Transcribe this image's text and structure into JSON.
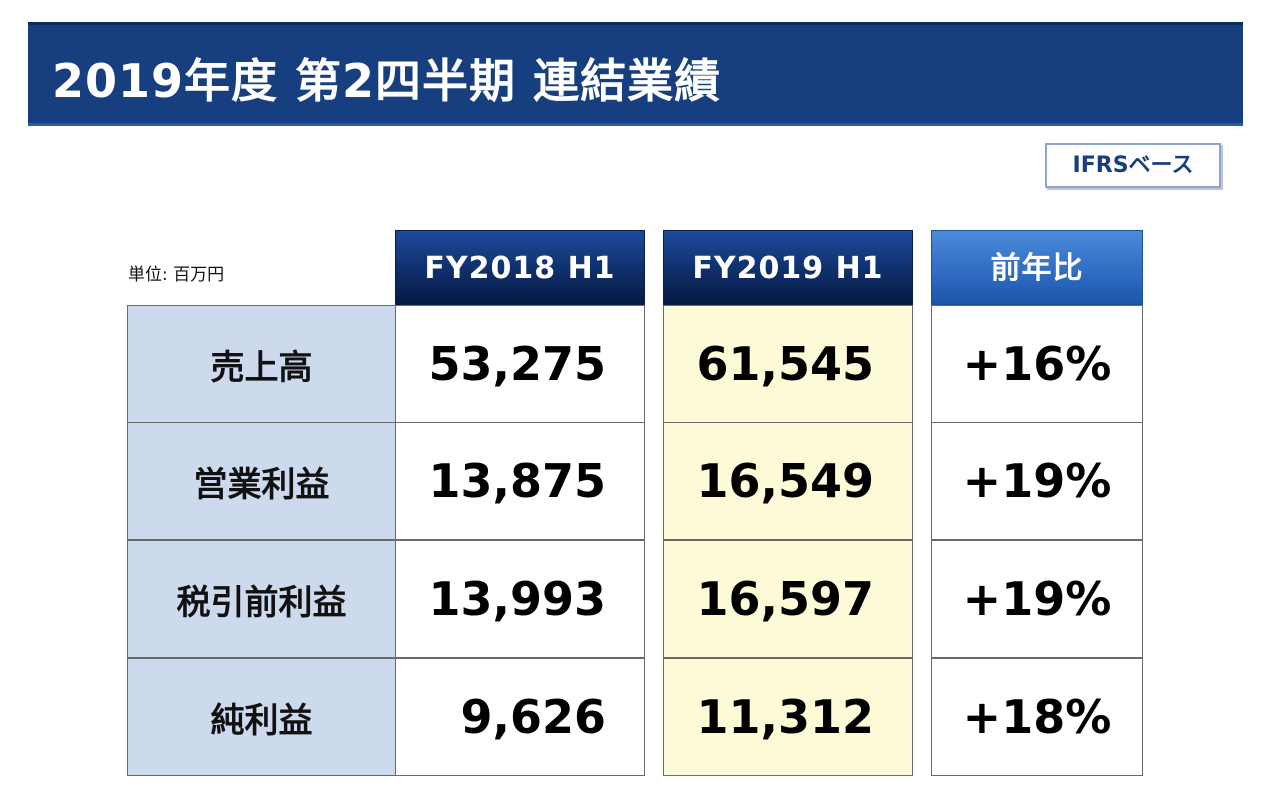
{
  "title": "2019年度 第2四半期 連結業績",
  "badge": "IFRSベース",
  "unit": "単位: 百万円",
  "headers": {
    "fy2018": "FY2018 H1",
    "fy2019": "FY2019 H1",
    "ratio": "前年比"
  },
  "rows": [
    {
      "label": "売上高",
      "fy2018": "53,275",
      "fy2019": "61,545",
      "ratio": "+16%"
    },
    {
      "label": "営業利益",
      "fy2018": "13,875",
      "fy2019": "16,549",
      "ratio": "+19%"
    },
    {
      "label": "税引前利益",
      "fy2018": "13,993",
      "fy2019": "16,597",
      "ratio": "+19%"
    },
    {
      "label": "純利益",
      "fy2018": "9,626",
      "fy2019": "11,312",
      "ratio": "+18%"
    }
  ],
  "colors": {
    "title_bar": "#173f7f",
    "header_dark": "#0e2c66",
    "header_ratio": "#2e6bc2",
    "label_bg": "#cdd9ec",
    "fy2019_bg": "#fdfad8"
  }
}
